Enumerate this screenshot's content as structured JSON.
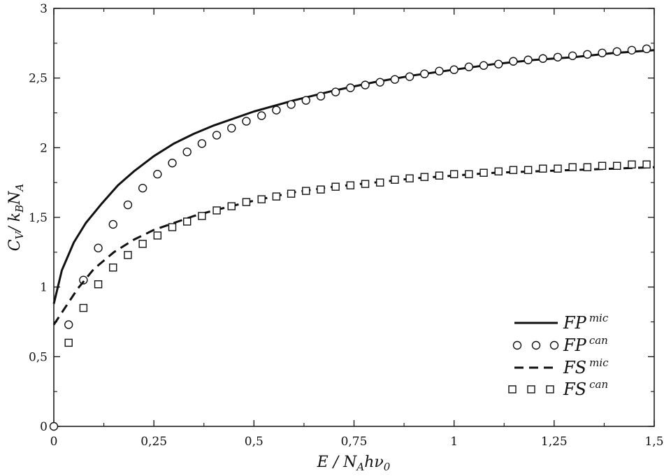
{
  "chart_data": {
    "type": "line",
    "xlim": [
      0,
      1.5
    ],
    "ylim": [
      0,
      3
    ],
    "xticks": [
      0,
      0.25,
      0.5,
      0.75,
      1,
      1.25,
      1.5
    ],
    "yticks": [
      0,
      0.5,
      1,
      1.5,
      2,
      2.5,
      3
    ],
    "xtick_labels": [
      "0",
      "0,25",
      "0,5",
      "0,75",
      "1",
      "1,25",
      "1,5"
    ],
    "ytick_labels": [
      "0",
      "0,5",
      "1",
      "1,5",
      "2",
      "2,5",
      "3"
    ],
    "xlabel": {
      "main": "E / N",
      "sub": "A",
      "rest": "hν",
      "sub2": "0"
    },
    "ylabel": {
      "main": "C",
      "sub": "V",
      "mid": "/ k",
      "sub2": "B",
      "rest": "N",
      "sub3": "A"
    },
    "grid": false,
    "legend_position": "bottom-right",
    "series": [
      {
        "key": "fp_mic",
        "label_base": "FP",
        "label_sup": "mic",
        "style": "solid",
        "marker": "none",
        "x": [
          0,
          0.02,
          0.05,
          0.08,
          0.12,
          0.16,
          0.2,
          0.25,
          0.3,
          0.35,
          0.4,
          0.5,
          0.6,
          0.7,
          0.8,
          0.9,
          1,
          1.1,
          1.2,
          1.3,
          1.4,
          1.5
        ],
        "y": [
          0.88,
          1.12,
          1.32,
          1.46,
          1.6,
          1.73,
          1.83,
          1.94,
          2.03,
          2.1,
          2.16,
          2.26,
          2.34,
          2.41,
          2.47,
          2.52,
          2.56,
          2.6,
          2.63,
          2.65,
          2.68,
          2.7
        ]
      },
      {
        "key": "fp_can",
        "label_base": "FP",
        "label_sup": "can",
        "style": "none",
        "marker": "circle",
        "x": [
          0,
          0.037,
          0.074,
          0.111,
          0.148,
          0.185,
          0.222,
          0.259,
          0.296,
          0.333,
          0.37,
          0.407,
          0.444,
          0.481,
          0.519,
          0.556,
          0.593,
          0.63,
          0.667,
          0.704,
          0.741,
          0.778,
          0.815,
          0.852,
          0.889,
          0.926,
          0.963,
          1.0,
          1.037,
          1.074,
          1.111,
          1.148,
          1.185,
          1.222,
          1.259,
          1.296,
          1.333,
          1.37,
          1.407,
          1.444,
          1.481
        ],
        "y": [
          0.0,
          0.73,
          1.05,
          1.28,
          1.45,
          1.59,
          1.71,
          1.81,
          1.89,
          1.97,
          2.03,
          2.09,
          2.14,
          2.19,
          2.23,
          2.27,
          2.31,
          2.34,
          2.37,
          2.4,
          2.43,
          2.45,
          2.47,
          2.49,
          2.51,
          2.53,
          2.55,
          2.56,
          2.58,
          2.59,
          2.6,
          2.62,
          2.63,
          2.64,
          2.65,
          2.66,
          2.67,
          2.68,
          2.69,
          2.7,
          2.71
        ]
      },
      {
        "key": "fs_mic",
        "label_base": "FS",
        "label_sup": "mic",
        "style": "dashed",
        "marker": "none",
        "x": [
          0,
          0.03,
          0.06,
          0.1,
          0.15,
          0.2,
          0.25,
          0.3,
          0.35,
          0.4,
          0.5,
          0.6,
          0.7,
          0.8,
          0.9,
          1,
          1.1,
          1.2,
          1.3,
          1.4,
          1.5
        ],
        "y": [
          0.73,
          0.86,
          0.99,
          1.13,
          1.25,
          1.34,
          1.41,
          1.46,
          1.51,
          1.55,
          1.62,
          1.68,
          1.72,
          1.75,
          1.78,
          1.8,
          1.82,
          1.83,
          1.84,
          1.85,
          1.86
        ]
      },
      {
        "key": "fs_can",
        "label_base": "FS",
        "label_sup": "can",
        "style": "none",
        "marker": "square",
        "x": [
          0.037,
          0.074,
          0.111,
          0.148,
          0.185,
          0.222,
          0.259,
          0.296,
          0.333,
          0.37,
          0.407,
          0.444,
          0.481,
          0.519,
          0.556,
          0.593,
          0.63,
          0.667,
          0.704,
          0.741,
          0.778,
          0.815,
          0.852,
          0.889,
          0.926,
          0.963,
          1.0,
          1.037,
          1.074,
          1.111,
          1.148,
          1.185,
          1.222,
          1.259,
          1.296,
          1.333,
          1.37,
          1.407,
          1.444,
          1.481
        ],
        "y": [
          0.6,
          0.85,
          1.02,
          1.14,
          1.23,
          1.31,
          1.37,
          1.43,
          1.47,
          1.51,
          1.55,
          1.58,
          1.61,
          1.63,
          1.65,
          1.67,
          1.69,
          1.7,
          1.72,
          1.73,
          1.74,
          1.75,
          1.77,
          1.78,
          1.79,
          1.8,
          1.81,
          1.81,
          1.82,
          1.83,
          1.84,
          1.84,
          1.85,
          1.85,
          1.86,
          1.86,
          1.87,
          1.87,
          1.88,
          1.88
        ]
      }
    ]
  }
}
